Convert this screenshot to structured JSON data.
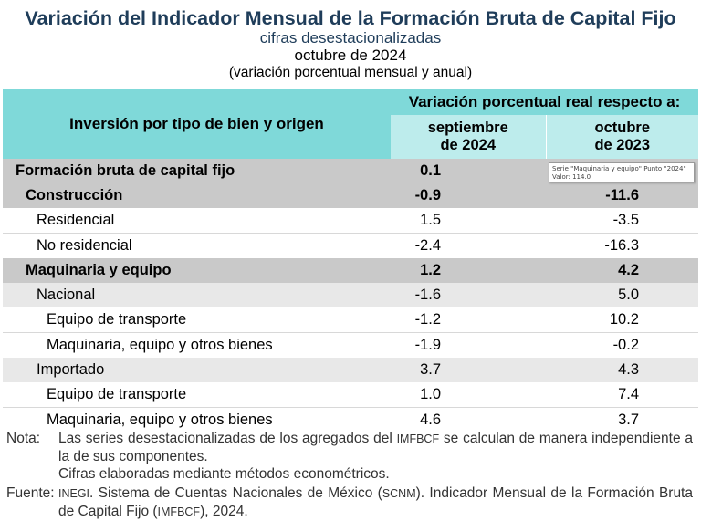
{
  "header": {
    "title": "Variación del Indicador Mensual de la Formación Bruta de Capital Fijo",
    "subtitle": "cifras desestacionalizadas",
    "date": "octubre de 2024",
    "note": "(variación porcentual mensual y anual)"
  },
  "table": {
    "row_header": "Inversión por tipo de bien y origen",
    "group_header": "Variación porcentual real respecto a:",
    "col1_line1": "septiembre",
    "col1_line2": "de 2024",
    "col2_line1": "octubre",
    "col2_line2": "de 2023",
    "rows": [
      {
        "label": "Formación bruta de capital fijo",
        "v1": "0.1",
        "v2": "",
        "level": 0,
        "bold": true,
        "style": "dark"
      },
      {
        "label": "Construcción",
        "v1": "-0.9",
        "v2": "-11.6",
        "level": 1,
        "bold": true,
        "style": "dark"
      },
      {
        "label": "Residencial",
        "v1": "1.5",
        "v2": "-3.5",
        "level": 2,
        "bold": false,
        "style": "white"
      },
      {
        "label": "No residencial",
        "v1": "-2.4",
        "v2": "-16.3",
        "level": 2,
        "bold": false,
        "style": "white"
      },
      {
        "label": "Maquinaria y equipo",
        "v1": "1.2",
        "v2": "4.2",
        "level": 1,
        "bold": true,
        "style": "dark"
      },
      {
        "label": "Nacional",
        "v1": "-1.6",
        "v2": "5.0",
        "level": 2,
        "bold": false,
        "style": "shade"
      },
      {
        "label": "Equipo de transporte",
        "v1": "-1.2",
        "v2": "10.2",
        "level": 3,
        "bold": false,
        "style": "white"
      },
      {
        "label": "Maquinaria, equipo y otros bienes",
        "v1": "-1.9",
        "v2": "-0.2",
        "level": 3,
        "bold": false,
        "style": "white"
      },
      {
        "label": "Importado",
        "v1": "3.7",
        "v2": "4.3",
        "level": 2,
        "bold": false,
        "style": "shade"
      },
      {
        "label": "Equipo de transporte",
        "v1": "1.0",
        "v2": "7.4",
        "level": 3,
        "bold": false,
        "style": "white"
      },
      {
        "label": "Maquinaria, equipo y otros bienes",
        "v1": "4.6",
        "v2": "3.7",
        "level": 3,
        "bold": false,
        "style": "white"
      }
    ]
  },
  "tooltip": {
    "line1": "Serie \"Maquinaria y equipo\" Punto \"2024\"",
    "line2": "Valor: 114.0"
  },
  "notes": {
    "nota_label": "Nota:",
    "nota_text1a": "Las series desestacionalizadas de los agregados del ",
    "nota_abbr1": "IMFBCF",
    "nota_text1b": " se calculan de manera independiente a la de sus componentes.",
    "nota_text2": "Cifras elaboradas mediante métodos econométricos.",
    "fuente_label": "Fuente:",
    "fuente_abbr1": "INEGI",
    "fuente_text1": ". Sistema de Cuentas Nacionales de México (",
    "fuente_abbr2": "SCNM",
    "fuente_text2": "). Indicador Mensual de la Formación Bruta de Capital Fijo (",
    "fuente_abbr3": "IMFBCF",
    "fuente_text3": "), 2024."
  }
}
